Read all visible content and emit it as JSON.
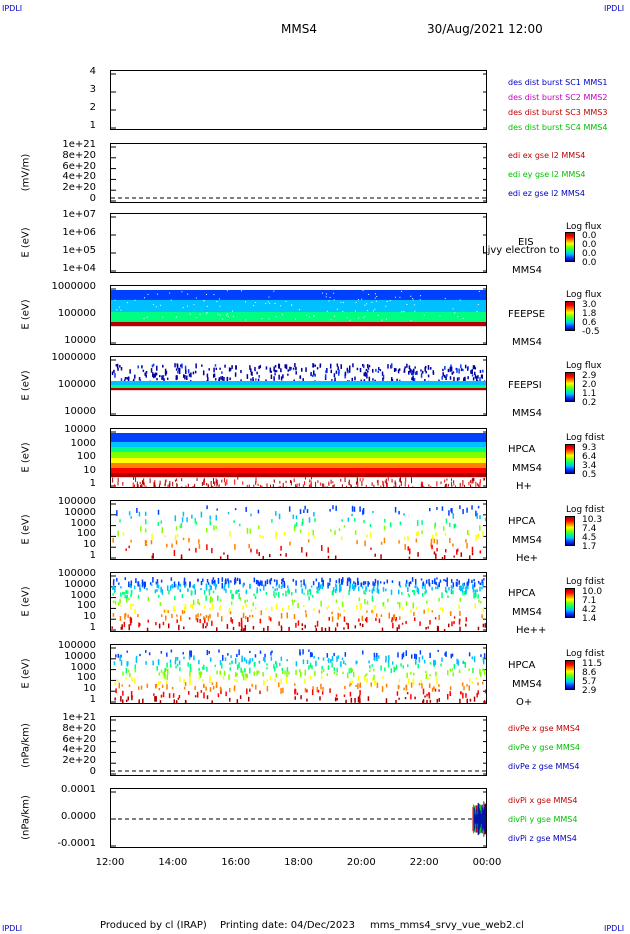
{
  "corners": {
    "tl": "IPDLI",
    "tr": "IPDLI",
    "bl": "IPDLI",
    "br": "IPDLI"
  },
  "header": {
    "spacecraft": "MMS4",
    "datetime": "30/Aug/2021 12:00"
  },
  "footer": {
    "produced": "Produced by cl (IRAP)",
    "printing": "Printing date: 04/Dec/2023",
    "file": "mms_mms4_srvy_vue_web2.cl"
  },
  "chart_data": {
    "type": "multi-panel time series",
    "x": {
      "ticks": [
        "12:00",
        "14:00",
        "16:00",
        "18:00",
        "20:00",
        "22:00",
        "00:00"
      ]
    },
    "panels": [
      {
        "id": "p1",
        "ylabel": "",
        "yticks": [
          "4",
          "3",
          "2",
          "1"
        ],
        "legend": [
          {
            "text": "des dist burst SC1 MMS1",
            "color": "#0000c0"
          },
          {
            "text": "des dist burst SC2 MMS2",
            "color": "#c000c0"
          },
          {
            "text": "des dist burst SC3 MMS3",
            "color": "#c00000"
          },
          {
            "text": "des dist burst SC4 MMS4",
            "color": "#00c000"
          }
        ]
      },
      {
        "id": "p2",
        "ylabel": "(mV/m)",
        "yticks": [
          "1e+21",
          "8e+20",
          "6e+20",
          "4e+20",
          "2e+20",
          "0"
        ],
        "legend": [
          {
            "text": "edi ex gse l2 MMS4",
            "color": "#c00000"
          },
          {
            "text": "edi ey gse l2 MMS4",
            "color": "#00c000"
          },
          {
            "text": "edi ez gse l2 MMS4",
            "color": "#0000c0"
          }
        ]
      },
      {
        "id": "p3",
        "ylabel": "E (eV)",
        "yticks": [
          "1e+07",
          "1e+06",
          "1e+05",
          "1e+04"
        ],
        "side": [
          "EIS",
          "MMS4"
        ],
        "overlay": "Ljvy electron to",
        "cb_title": "Log flux",
        "cb_vals": [
          "0.0",
          "0.0",
          "0.0",
          "0.0"
        ]
      },
      {
        "id": "p4",
        "ylabel": "E (eV)",
        "yticks": [
          "1000000",
          "100000",
          "10000"
        ],
        "side": [
          "FEEPSE",
          "MMS4"
        ],
        "cb_title": "Log flux",
        "cb_vals": [
          "3.0",
          "1.8",
          "0.6",
          "-0.5"
        ]
      },
      {
        "id": "p5",
        "ylabel": "E (eV)",
        "yticks": [
          "1000000",
          "100000",
          "10000"
        ],
        "side": [
          "FEEPSI",
          "MMS4"
        ],
        "cb_title": "Log flux",
        "cb_vals": [
          "2.9",
          "2.0",
          "1.1",
          "0.2"
        ]
      },
      {
        "id": "p6",
        "ylabel": "E (eV)",
        "yticks": [
          "10000",
          "1000",
          "100",
          "10",
          "1"
        ],
        "side": [
          "HPCA",
          "MMS4"
        ],
        "species": "H+",
        "cb_title": "Log fdist",
        "cb_vals": [
          "9.3",
          "6.4",
          "3.4",
          "0.5"
        ]
      },
      {
        "id": "p7",
        "ylabel": "E (eV)",
        "yticks": [
          "100000",
          "10000",
          "1000",
          "100",
          "10",
          "1"
        ],
        "side": [
          "HPCA",
          "MMS4"
        ],
        "species": "He+",
        "cb_title": "Log fdist",
        "cb_vals": [
          "10.3",
          "7.4",
          "4.5",
          "1.7"
        ]
      },
      {
        "id": "p8",
        "ylabel": "E (eV)",
        "yticks": [
          "100000",
          "10000",
          "1000",
          "100",
          "10",
          "1"
        ],
        "side": [
          "HPCA",
          "MMS4"
        ],
        "species": "He++",
        "cb_title": "Log fdist",
        "cb_vals": [
          "10.0",
          "7.1",
          "4.2",
          "1.4"
        ]
      },
      {
        "id": "p9",
        "ylabel": "E (eV)",
        "yticks": [
          "100000",
          "10000",
          "1000",
          "100",
          "10",
          "1"
        ],
        "side": [
          "HPCA",
          "MMS4"
        ],
        "species": "O+",
        "cb_title": "Log fdist",
        "cb_vals": [
          "11.5",
          "8.6",
          "5.7",
          "2.9"
        ]
      },
      {
        "id": "p10",
        "ylabel": "(nPa/km)",
        "yticks": [
          "1e+21",
          "8e+20",
          "6e+20",
          "4e+20",
          "2e+20",
          "0"
        ],
        "legend": [
          {
            "text": "divPe x gse MMS4",
            "color": "#c00000"
          },
          {
            "text": "divPe y gse MMS4",
            "color": "#00c000"
          },
          {
            "text": "divPe z gse MMS4",
            "color": "#0000c0"
          }
        ]
      },
      {
        "id": "p11",
        "ylabel": "(nPa/km)",
        "yticks": [
          "0.0001",
          "0.0000",
          "-0.0001"
        ],
        "legend": [
          {
            "text": "divPi x gse MMS4",
            "color": "#c00000"
          },
          {
            "text": "divPi y gse MMS4",
            "color": "#00c000"
          },
          {
            "text": "divPi z gse MMS4",
            "color": "#0000c0"
          }
        ]
      }
    ]
  }
}
